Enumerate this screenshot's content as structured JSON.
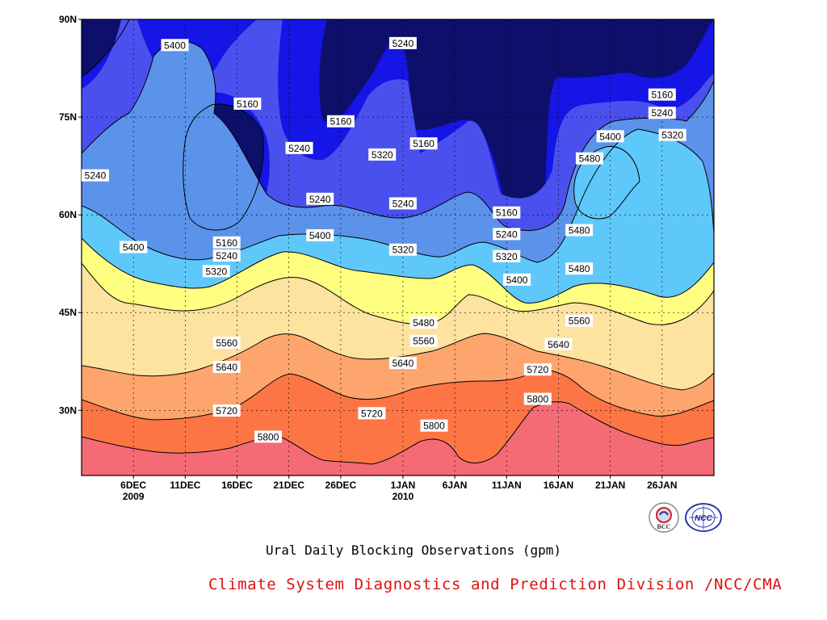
{
  "chart_data": {
    "type": "heatmap",
    "title": "",
    "caption": "Ural Daily Blocking Observations (gpm)",
    "xlabel": "",
    "ylabel": "",
    "y_ticks": [
      "90N",
      "75N",
      "60N",
      "45N",
      "30N"
    ],
    "x_ticks": [
      {
        "date": "2009-12-06",
        "label": "6DEC",
        "sub": "2009"
      },
      {
        "date": "2009-12-11",
        "label": "11DEC",
        "sub": ""
      },
      {
        "date": "2009-12-16",
        "label": "16DEC",
        "sub": ""
      },
      {
        "date": "2009-12-21",
        "label": "21DEC",
        "sub": ""
      },
      {
        "date": "2009-12-26",
        "label": "26DEC",
        "sub": ""
      },
      {
        "date": "2010-01-01",
        "label": "1JAN",
        "sub": "2010"
      },
      {
        "date": "2010-01-06",
        "label": "6JAN",
        "sub": ""
      },
      {
        "date": "2010-01-11",
        "label": "11JAN",
        "sub": ""
      },
      {
        "date": "2010-01-16",
        "label": "16JAN",
        "sub": ""
      },
      {
        "date": "2010-01-21",
        "label": "21JAN",
        "sub": ""
      },
      {
        "date": "2010-01-26",
        "label": "26JAN",
        "sub": ""
      }
    ],
    "xlim": [
      "2009-12-01",
      "2010-01-31"
    ],
    "ylim": [
      20,
      90
    ],
    "contour_levels": [
      5160,
      5240,
      5320,
      5400,
      5480,
      5560,
      5640,
      5720,
      5800
    ],
    "fill_colors": [
      "#0d0f6b",
      "#1515e6",
      "#4a50ee",
      "#5b93ea",
      "#5fc8fb",
      "#fefe80",
      "#fde2a0",
      "#fda56d",
      "#fe7545",
      "#f56b75"
    ],
    "contour_labels": [
      {
        "v": "5400",
        "date": "2009-12-10",
        "lat": 86
      },
      {
        "v": "5160",
        "date": "2009-12-17",
        "lat": 77
      },
      {
        "v": "5240",
        "date": "2009-12-01",
        "lat": 66
      },
      {
        "v": "5400",
        "date": "2009-12-06",
        "lat": 55
      },
      {
        "v": "5160",
        "date": "2009-12-15",
        "lat": 55.7
      },
      {
        "v": "5240",
        "date": "2009-12-15",
        "lat": 53.7
      },
      {
        "v": "5320",
        "date": "2009-12-14",
        "lat": 51.3
      },
      {
        "v": "5240",
        "date": "2009-12-22",
        "lat": 70.2
      },
      {
        "v": "5160",
        "date": "2009-12-26",
        "lat": 74.3
      },
      {
        "v": "5240",
        "date": "2009-12-24",
        "lat": 62.4
      },
      {
        "v": "5400",
        "date": "2009-12-24",
        "lat": 56.8
      },
      {
        "v": "5240",
        "date": "2010-01-01",
        "lat": 86.3
      },
      {
        "v": "5320",
        "date": "2009-12-30",
        "lat": 69.2
      },
      {
        "v": "5160",
        "date": "2010-01-03",
        "lat": 70.9
      },
      {
        "v": "5240",
        "date": "2010-01-01",
        "lat": 61.7
      },
      {
        "v": "5320",
        "date": "2010-01-01",
        "lat": 54.6
      },
      {
        "v": "5160",
        "date": "2010-01-11",
        "lat": 60.3
      },
      {
        "v": "5240",
        "date": "2010-01-11",
        "lat": 57.0
      },
      {
        "v": "5320",
        "date": "2010-01-11",
        "lat": 53.6
      },
      {
        "v": "5400",
        "date": "2010-01-12",
        "lat": 50.0
      },
      {
        "v": "5480",
        "date": "2010-01-19",
        "lat": 68.6
      },
      {
        "v": "5400",
        "date": "2010-01-21",
        "lat": 72.0
      },
      {
        "v": "5160",
        "date": "2010-01-26",
        "lat": 78.4
      },
      {
        "v": "5240",
        "date": "2010-01-26",
        "lat": 75.6
      },
      {
        "v": "5320",
        "date": "2010-01-27",
        "lat": 72.2
      },
      {
        "v": "5480",
        "date": "2010-01-18",
        "lat": 57.6
      },
      {
        "v": "5480",
        "date": "2010-01-18",
        "lat": 51.7
      },
      {
        "v": "5480",
        "date": "2010-01-03",
        "lat": 43.4
      },
      {
        "v": "5560",
        "date": "2010-01-18",
        "lat": 43.7
      },
      {
        "v": "5560",
        "date": "2009-12-15",
        "lat": 40.3
      },
      {
        "v": "5560",
        "date": "2010-01-03",
        "lat": 40.6
      },
      {
        "v": "5640",
        "date": "2010-01-16",
        "lat": 40.1
      },
      {
        "v": "5640",
        "date": "2009-12-15",
        "lat": 36.6
      },
      {
        "v": "5640",
        "date": "2010-01-01",
        "lat": 37.2
      },
      {
        "v": "5720",
        "date": "2010-01-14",
        "lat": 36.2
      },
      {
        "v": "5720",
        "date": "2009-12-15",
        "lat": 29.9
      },
      {
        "v": "5720",
        "date": "2009-12-29",
        "lat": 29.5
      },
      {
        "v": "5800",
        "date": "2010-01-14",
        "lat": 31.7
      },
      {
        "v": "5800",
        "date": "2009-12-19",
        "lat": 25.9
      },
      {
        "v": "5800",
        "date": "2010-01-04",
        "lat": 27.6
      }
    ]
  },
  "footer": {
    "caption": "Ural Daily Blocking Observations (gpm)",
    "credit": "Climate System Diagnostics and Prediction Division /NCC/CMA",
    "logo_bcc_text": "BCC",
    "logo_ncc_text": "NCC"
  }
}
